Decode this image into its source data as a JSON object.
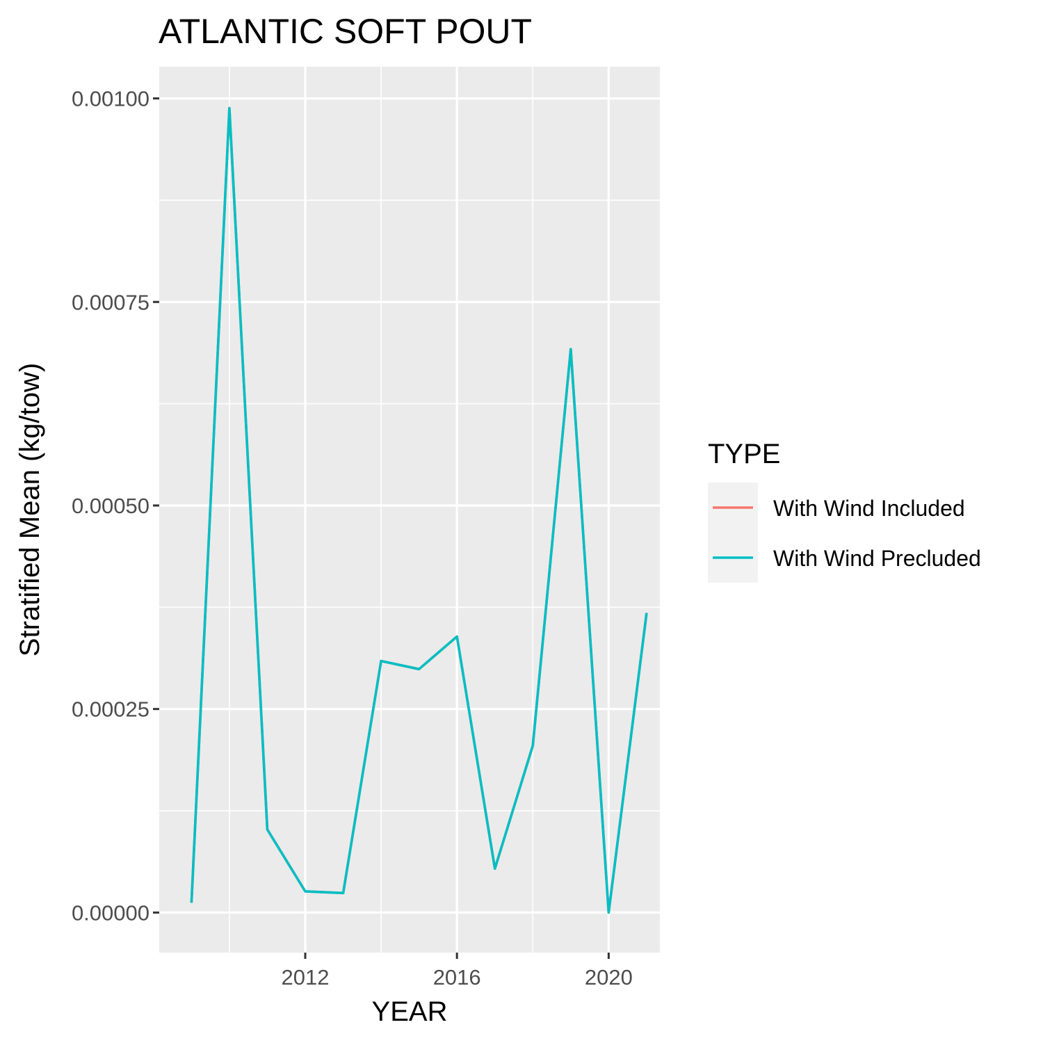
{
  "chart_data": {
    "type": "line",
    "title": "ATLANTIC SOFT POUT",
    "xlabel": "YEAR",
    "ylabel": "Stratified Mean (kg/tow)",
    "x_ticks": [
      2012,
      2016,
      2020
    ],
    "x_tick_labels": [
      "2012",
      "2016",
      "2020"
    ],
    "y_ticks": [
      0,
      0.00025,
      0.0005,
      0.00075,
      0.001
    ],
    "y_tick_labels": [
      "0.00000",
      "0.00025",
      "0.00050",
      "0.00075",
      "0.00100"
    ],
    "xlim": [
      2008.15,
      2021.35
    ],
    "ylim": [
      -4.92e-05,
      0.0010389
    ],
    "grid": true,
    "legend": {
      "title": "TYPE",
      "position": "right"
    },
    "series": [
      {
        "name": "With Wind Included",
        "color": "#F8766D",
        "x": [
          2009,
          2010,
          2011,
          2012,
          2013,
          2014,
          2015,
          2016,
          2017,
          2018,
          2019,
          2020,
          2021
        ],
        "y": [
          1.2e-05,
          0.000988,
          0.000102,
          2.6e-05,
          2.4e-05,
          0.000309,
          0.000299,
          0.000339,
          5.4e-05,
          0.000205,
          0.000692,
          0.0,
          0.000368
        ]
      },
      {
        "name": "With Wind Precluded",
        "color": "#00BFC4",
        "x": [
          2009,
          2010,
          2011,
          2012,
          2013,
          2014,
          2015,
          2016,
          2017,
          2018,
          2019,
          2020,
          2021
        ],
        "y": [
          1.2e-05,
          0.000988,
          0.000102,
          2.6e-05,
          2.4e-05,
          0.000309,
          0.000299,
          0.000339,
          5.4e-05,
          0.000205,
          0.000692,
          0.0,
          0.000368
        ]
      }
    ]
  }
}
